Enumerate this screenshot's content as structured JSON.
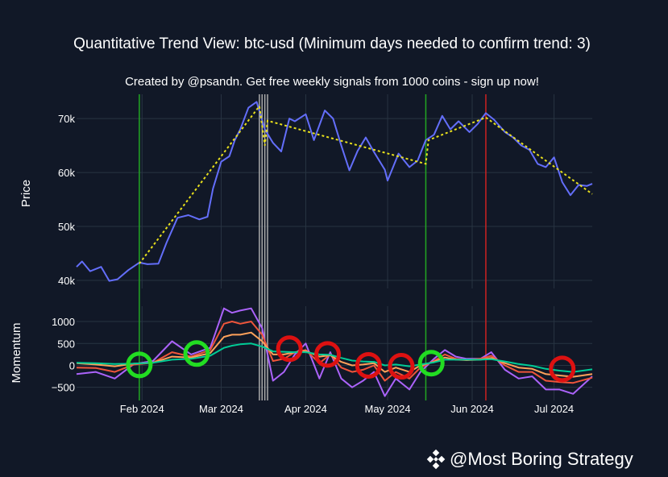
{
  "chart_data": {
    "type": "line",
    "title": "Quantitative Trend View: btc-usd (Minimum days needed to confirm trend: 3)",
    "subtitle": "Created by @psandn. Get free weekly signals from 1000 coins - sign up now!",
    "x_ticks": [
      "Feb 2024",
      "Mar 2024",
      "Apr 2024",
      "May 2024",
      "Jun 2024",
      "Jul 2024"
    ],
    "price_panel": {
      "ylabel": "Price",
      "ylim": [
        38500,
        74500
      ],
      "y_ticks": [
        {
          "value": 40000,
          "label": "40k"
        },
        {
          "value": 50000,
          "label": "50k"
        },
        {
          "value": 60000,
          "label": "60k"
        },
        {
          "value": 70000,
          "label": "70k"
        }
      ],
      "price": [
        [
          "2024-01-08",
          42500
        ],
        [
          "2024-01-10",
          43500
        ],
        [
          "2024-01-13",
          41700
        ],
        [
          "2024-01-17",
          42500
        ],
        [
          "2024-01-20",
          39900
        ],
        [
          "2024-01-23",
          40200
        ],
        [
          "2024-01-27",
          41900
        ],
        [
          "2024-01-31",
          43300
        ],
        [
          "2024-02-03",
          43000
        ],
        [
          "2024-02-07",
          43100
        ],
        [
          "2024-02-10",
          47000
        ],
        [
          "2024-02-14",
          51600
        ],
        [
          "2024-02-18",
          52100
        ],
        [
          "2024-02-22",
          51300
        ],
        [
          "2024-02-25",
          51800
        ],
        [
          "2024-02-27",
          57000
        ],
        [
          "2024-03-01",
          62000
        ],
        [
          "2024-03-04",
          63000
        ],
        [
          "2024-03-06",
          66000
        ],
        [
          "2024-03-08",
          68000
        ],
        [
          "2024-03-11",
          72000
        ],
        [
          "2024-03-14",
          73100
        ],
        [
          "2024-03-17",
          68000
        ],
        [
          "2024-03-20",
          65500
        ],
        [
          "2024-03-23",
          63900
        ],
        [
          "2024-03-26",
          70000
        ],
        [
          "2024-03-28",
          69500
        ],
        [
          "2024-04-01",
          70800
        ],
        [
          "2024-04-04",
          66000
        ],
        [
          "2024-04-08",
          71500
        ],
        [
          "2024-04-11",
          70000
        ],
        [
          "2024-04-14",
          65000
        ],
        [
          "2024-04-17",
          60400
        ],
        [
          "2024-04-20",
          64000
        ],
        [
          "2024-04-23",
          66500
        ],
        [
          "2024-04-26",
          63800
        ],
        [
          "2024-04-30",
          60500
        ],
        [
          "2024-05-01",
          58500
        ],
        [
          "2024-05-05",
          63500
        ],
        [
          "2024-05-09",
          61000
        ],
        [
          "2024-05-12",
          62200
        ],
        [
          "2024-05-15",
          66000
        ],
        [
          "2024-05-18",
          67000
        ],
        [
          "2024-05-21",
          70500
        ],
        [
          "2024-05-24",
          68000
        ],
        [
          "2024-05-27",
          69500
        ],
        [
          "2024-05-31",
          67500
        ],
        [
          "2024-06-03",
          69000
        ],
        [
          "2024-06-06",
          71000
        ],
        [
          "2024-06-09",
          69800
        ],
        [
          "2024-06-13",
          67500
        ],
        [
          "2024-06-16",
          66500
        ],
        [
          "2024-06-19",
          65000
        ],
        [
          "2024-06-22",
          64200
        ],
        [
          "2024-06-25",
          61600
        ],
        [
          "2024-06-28",
          61000
        ],
        [
          "2024-07-01",
          62800
        ],
        [
          "2024-07-04",
          58200
        ],
        [
          "2024-07-07",
          55800
        ],
        [
          "2024-07-10",
          57700
        ],
        [
          "2024-07-13",
          57500
        ],
        [
          "2024-07-15",
          57900
        ]
      ],
      "trendline": [
        [
          "2024-01-31",
          43100
        ],
        [
          "2024-03-15",
          72300
        ],
        [
          "2024-03-17",
          65000
        ],
        [
          "2024-03-18",
          69600
        ],
        [
          "2024-05-15",
          61600
        ],
        [
          "2024-05-16",
          66000
        ],
        [
          "2024-06-06",
          70200
        ],
        [
          "2024-07-15",
          56000
        ]
      ]
    },
    "momentum_panel": {
      "ylabel": "Momentum",
      "ylim": [
        -800,
        1350
      ],
      "y_ticks": [
        {
          "value": -500,
          "label": "−500"
        },
        {
          "value": 0,
          "label": "0"
        },
        {
          "value": 500,
          "label": "500"
        },
        {
          "value": 1000,
          "label": "1000"
        }
      ],
      "series": [
        {
          "color": "#ab63fa",
          "values": [
            [
              "2024-01-08",
              -200
            ],
            [
              "2024-01-15",
              -150
            ],
            [
              "2024-01-22",
              -300
            ],
            [
              "2024-01-29",
              30
            ],
            [
              "2024-02-05",
              100
            ],
            [
              "2024-02-12",
              550
            ],
            [
              "2024-02-19",
              250
            ],
            [
              "2024-02-26",
              400
            ],
            [
              "2024-03-02",
              1300
            ],
            [
              "2024-03-05",
              1200
            ],
            [
              "2024-03-08",
              1250
            ],
            [
              "2024-03-12",
              1300
            ],
            [
              "2024-03-16",
              850
            ],
            [
              "2024-03-20",
              -350
            ],
            [
              "2024-03-24",
              -150
            ],
            [
              "2024-03-28",
              250
            ],
            [
              "2024-04-01",
              500
            ],
            [
              "2024-04-06",
              -300
            ],
            [
              "2024-04-10",
              300
            ],
            [
              "2024-04-14",
              -300
            ],
            [
              "2024-04-18",
              -500
            ],
            [
              "2024-04-22",
              -350
            ],
            [
              "2024-04-26",
              -150
            ],
            [
              "2024-04-30",
              -700
            ],
            [
              "2024-05-04",
              -300
            ],
            [
              "2024-05-09",
              -550
            ],
            [
              "2024-05-13",
              -150
            ],
            [
              "2024-05-18",
              150
            ],
            [
              "2024-05-22",
              350
            ],
            [
              "2024-05-26",
              200
            ],
            [
              "2024-05-30",
              150
            ],
            [
              "2024-06-04",
              150
            ],
            [
              "2024-06-08",
              300
            ],
            [
              "2024-06-13",
              -100
            ],
            [
              "2024-06-18",
              -300
            ],
            [
              "2024-06-23",
              -250
            ],
            [
              "2024-06-28",
              -550
            ],
            [
              "2024-07-03",
              -550
            ],
            [
              "2024-07-08",
              -650
            ],
            [
              "2024-07-15",
              -250
            ]
          ]
        },
        {
          "color": "#ef553b",
          "values": [
            [
              "2024-01-08",
              -50
            ],
            [
              "2024-01-15",
              -60
            ],
            [
              "2024-01-22",
              -150
            ],
            [
              "2024-01-29",
              20
            ],
            [
              "2024-02-05",
              60
            ],
            [
              "2024-02-12",
              300
            ],
            [
              "2024-02-19",
              200
            ],
            [
              "2024-02-26",
              350
            ],
            [
              "2024-03-02",
              950
            ],
            [
              "2024-03-05",
              1000
            ],
            [
              "2024-03-08",
              950
            ],
            [
              "2024-03-12",
              1000
            ],
            [
              "2024-03-16",
              700
            ],
            [
              "2024-03-20",
              100
            ],
            [
              "2024-03-24",
              150
            ],
            [
              "2024-03-28",
              300
            ],
            [
              "2024-04-01",
              350
            ],
            [
              "2024-04-06",
              50
            ],
            [
              "2024-04-10",
              250
            ],
            [
              "2024-04-14",
              -50
            ],
            [
              "2024-04-18",
              -150
            ],
            [
              "2024-04-22",
              -100
            ],
            [
              "2024-04-26",
              0
            ],
            [
              "2024-04-30",
              -350
            ],
            [
              "2024-05-04",
              -150
            ],
            [
              "2024-05-09",
              -300
            ],
            [
              "2024-05-13",
              -50
            ],
            [
              "2024-05-18",
              100
            ],
            [
              "2024-05-22",
              250
            ],
            [
              "2024-05-26",
              150
            ],
            [
              "2024-05-30",
              120
            ],
            [
              "2024-06-04",
              150
            ],
            [
              "2024-06-08",
              220
            ],
            [
              "2024-06-13",
              0
            ],
            [
              "2024-06-18",
              -150
            ],
            [
              "2024-06-23",
              -150
            ],
            [
              "2024-06-28",
              -350
            ],
            [
              "2024-07-03",
              -380
            ],
            [
              "2024-07-08",
              -400
            ],
            [
              "2024-07-15",
              -280
            ]
          ]
        },
        {
          "color": "#ffa15a",
          "values": [
            [
              "2024-01-08",
              50
            ],
            [
              "2024-01-15",
              20
            ],
            [
              "2024-01-22",
              -20
            ],
            [
              "2024-01-29",
              40
            ],
            [
              "2024-02-05",
              60
            ],
            [
              "2024-02-12",
              200
            ],
            [
              "2024-02-19",
              180
            ],
            [
              "2024-02-26",
              280
            ],
            [
              "2024-03-02",
              650
            ],
            [
              "2024-03-05",
              700
            ],
            [
              "2024-03-08",
              700
            ],
            [
              "2024-03-12",
              750
            ],
            [
              "2024-03-16",
              550
            ],
            [
              "2024-03-20",
              250
            ],
            [
              "2024-03-24",
              250
            ],
            [
              "2024-03-28",
              300
            ],
            [
              "2024-04-01",
              330
            ],
            [
              "2024-04-06",
              200
            ],
            [
              "2024-04-10",
              230
            ],
            [
              "2024-04-14",
              80
            ],
            [
              "2024-04-18",
              0
            ],
            [
              "2024-04-22",
              20
            ],
            [
              "2024-04-26",
              50
            ],
            [
              "2024-04-30",
              -150
            ],
            [
              "2024-05-04",
              -50
            ],
            [
              "2024-05-09",
              -150
            ],
            [
              "2024-05-13",
              0
            ],
            [
              "2024-05-18",
              80
            ],
            [
              "2024-05-22",
              180
            ],
            [
              "2024-05-26",
              130
            ],
            [
              "2024-05-30",
              120
            ],
            [
              "2024-06-04",
              130
            ],
            [
              "2024-06-08",
              170
            ],
            [
              "2024-06-13",
              50
            ],
            [
              "2024-06-18",
              -50
            ],
            [
              "2024-06-23",
              -80
            ],
            [
              "2024-06-28",
              -200
            ],
            [
              "2024-07-03",
              -230
            ],
            [
              "2024-07-08",
              -260
            ],
            [
              "2024-07-15",
              -200
            ]
          ]
        },
        {
          "color": "#00cc96",
          "values": [
            [
              "2024-01-08",
              60
            ],
            [
              "2024-01-15",
              50
            ],
            [
              "2024-01-22",
              30
            ],
            [
              "2024-01-29",
              40
            ],
            [
              "2024-02-05",
              60
            ],
            [
              "2024-02-12",
              130
            ],
            [
              "2024-02-19",
              150
            ],
            [
              "2024-02-26",
              220
            ],
            [
              "2024-03-02",
              400
            ],
            [
              "2024-03-05",
              450
            ],
            [
              "2024-03-08",
              480
            ],
            [
              "2024-03-12",
              500
            ],
            [
              "2024-03-16",
              430
            ],
            [
              "2024-03-20",
              320
            ],
            [
              "2024-03-24",
              310
            ],
            [
              "2024-03-28",
              300
            ],
            [
              "2024-04-01",
              300
            ],
            [
              "2024-04-06",
              250
            ],
            [
              "2024-04-10",
              240
            ],
            [
              "2024-04-14",
              170
            ],
            [
              "2024-04-18",
              110
            ],
            [
              "2024-04-22",
              90
            ],
            [
              "2024-04-26",
              80
            ],
            [
              "2024-04-30",
              0
            ],
            [
              "2024-05-04",
              20
            ],
            [
              "2024-05-09",
              -20
            ],
            [
              "2024-05-13",
              20
            ],
            [
              "2024-05-18",
              70
            ],
            [
              "2024-05-22",
              130
            ],
            [
              "2024-05-26",
              130
            ],
            [
              "2024-05-30",
              130
            ],
            [
              "2024-06-04",
              130
            ],
            [
              "2024-06-08",
              140
            ],
            [
              "2024-06-13",
              90
            ],
            [
              "2024-06-18",
              30
            ],
            [
              "2024-06-23",
              -10
            ],
            [
              "2024-06-28",
              -80
            ],
            [
              "2024-07-03",
              -120
            ],
            [
              "2024-07-08",
              -150
            ],
            [
              "2024-07-15",
              -90
            ]
          ]
        }
      ],
      "signals": [
        {
          "date": "2024-01-31",
          "value": 10,
          "type": "buy"
        },
        {
          "date": "2024-02-21",
          "value": 270,
          "type": "buy"
        },
        {
          "date": "2024-03-26",
          "value": 380,
          "type": "sell"
        },
        {
          "date": "2024-04-09",
          "value": 250,
          "type": "sell"
        },
        {
          "date": "2024-04-24",
          "value": 0,
          "type": "sell"
        },
        {
          "date": "2024-05-06",
          "value": -20,
          "type": "sell"
        },
        {
          "date": "2024-05-17",
          "value": 50,
          "type": "buy"
        },
        {
          "date": "2024-07-04",
          "value": -80,
          "type": "sell"
        }
      ]
    },
    "vertical_markers": [
      {
        "date": "2024-01-31",
        "color": "#22a722"
      },
      {
        "date": "2024-03-15",
        "color": "#aaaaaa"
      },
      {
        "date": "2024-03-16",
        "color": "#aaaaaa"
      },
      {
        "date": "2024-03-17",
        "color": "#aaaaaa"
      },
      {
        "date": "2024-03-18",
        "color": "#aaaaaa"
      },
      {
        "date": "2024-05-15",
        "color": "#22a722"
      },
      {
        "date": "2024-06-06",
        "color": "#cc2222"
      }
    ],
    "colors": {
      "price_line": "#636efa",
      "trendline": "#e8e01c",
      "buy_circle": "#22dd22",
      "sell_circle": "#dd1111"
    }
  },
  "watermark": {
    "text": "@Most Boring Strategy"
  }
}
